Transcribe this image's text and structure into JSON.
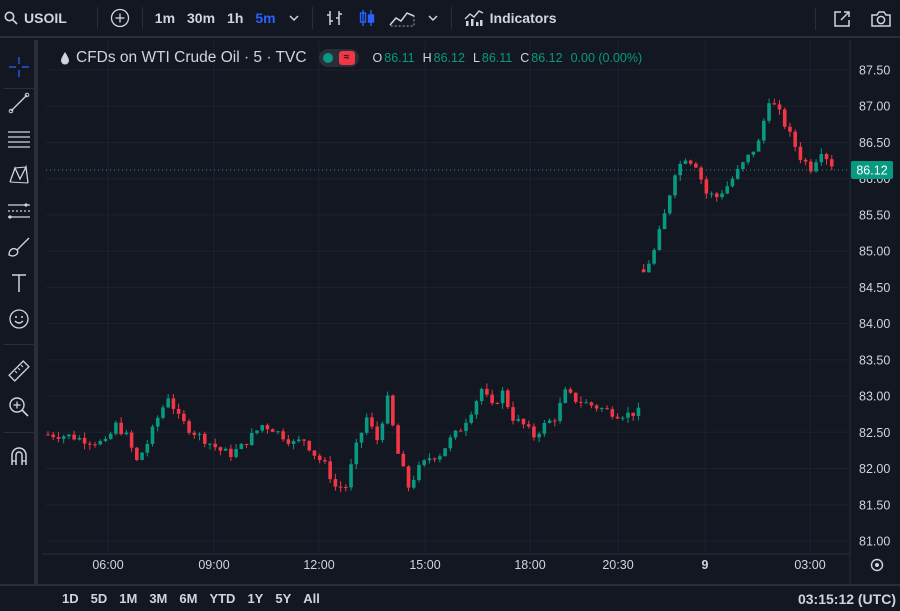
{
  "toolbar": {
    "symbol": "USOIL",
    "intervals": [
      "1m",
      "30m",
      "1h",
      "5m"
    ],
    "active_interval": "5m",
    "indicators_label": "Indicators"
  },
  "legend": {
    "title": "CFDs on WTI Crude Oil · 5 · TVC",
    "o_label": "O",
    "o_value": "86.11",
    "h_label": "H",
    "h_value": "86.12",
    "l_label": "L",
    "l_value": "86.11",
    "c_label": "C",
    "c_value": "86.12",
    "change": "0.00 (0.00%)"
  },
  "price_axis": {
    "ticks": [
      "87.50",
      "87.00",
      "86.50",
      "86.00",
      "85.50",
      "85.00",
      "84.50",
      "84.00",
      "83.50",
      "83.00",
      "82.50",
      "82.00",
      "81.50",
      "81.00"
    ],
    "last_price": "86.12"
  },
  "time_axis": {
    "ticks": [
      "06:00",
      "09:00",
      "12:00",
      "15:00",
      "18:00",
      "20:30",
      "9",
      "03:00"
    ]
  },
  "bottom": {
    "ranges": [
      "1D",
      "5D",
      "1M",
      "3M",
      "6M",
      "YTD",
      "1Y",
      "5Y",
      "All"
    ],
    "clock": "03:15:12 (UTC)"
  },
  "colors": {
    "background": "#131722",
    "grid": "#1e222d",
    "up": "#089981",
    "down": "#f23645",
    "text": "#d1d4dc",
    "active": "#2962ff"
  },
  "chart_data": {
    "type": "candlestick",
    "ylim": [
      81.0,
      87.5
    ],
    "x_ticks": [
      "06:00",
      "09:00",
      "12:00",
      "15:00",
      "18:00",
      "20:30",
      "9",
      "03:00"
    ],
    "close_path": [
      [
        0,
        82.47
      ],
      [
        20,
        82.45
      ],
      [
        40,
        82.38
      ],
      [
        55,
        82.35
      ],
      [
        65,
        82.6
      ],
      [
        75,
        82.45
      ],
      [
        85,
        82.1
      ],
      [
        95,
        82.35
      ],
      [
        105,
        82.7
      ],
      [
        115,
        83.0
      ],
      [
        125,
        82.7
      ],
      [
        135,
        82.55
      ],
      [
        145,
        82.45
      ],
      [
        155,
        82.35
      ],
      [
        165,
        82.25
      ],
      [
        175,
        82.2
      ],
      [
        185,
        82.3
      ],
      [
        195,
        82.45
      ],
      [
        205,
        82.6
      ],
      [
        215,
        82.55
      ],
      [
        225,
        82.45
      ],
      [
        235,
        82.35
      ],
      [
        245,
        82.4
      ],
      [
        255,
        82.2
      ],
      [
        265,
        82.05
      ],
      [
        275,
        81.75
      ],
      [
        285,
        81.75
      ],
      [
        295,
        82.3
      ],
      [
        305,
        82.7
      ],
      [
        315,
        82.4
      ],
      [
        325,
        82.95
      ],
      [
        335,
        82.2
      ],
      [
        345,
        81.75
      ],
      [
        355,
        82.0
      ],
      [
        365,
        82.15
      ],
      [
        375,
        82.2
      ],
      [
        385,
        82.4
      ],
      [
        395,
        82.55
      ],
      [
        405,
        82.8
      ],
      [
        415,
        83.1
      ],
      [
        425,
        82.85
      ],
      [
        435,
        83.05
      ],
      [
        445,
        82.7
      ],
      [
        455,
        82.6
      ],
      [
        465,
        82.45
      ],
      [
        475,
        82.6
      ],
      [
        485,
        82.7
      ],
      [
        495,
        83.05
      ],
      [
        505,
        82.95
      ],
      [
        515,
        82.9
      ],
      [
        525,
        82.85
      ],
      [
        535,
        82.8
      ],
      [
        545,
        82.75
      ],
      [
        555,
        82.75
      ],
      [
        565,
        82.78
      ],
      [
        570,
        84.7
      ],
      [
        580,
        85.0
      ],
      [
        590,
        85.5
      ],
      [
        600,
        86.1
      ],
      [
        610,
        86.3
      ],
      [
        620,
        86.2
      ],
      [
        630,
        85.8
      ],
      [
        640,
        85.75
      ],
      [
        650,
        85.9
      ],
      [
        660,
        86.1
      ],
      [
        670,
        86.3
      ],
      [
        680,
        86.5
      ],
      [
        690,
        87.1
      ],
      [
        700,
        86.9
      ],
      [
        710,
        86.6
      ],
      [
        720,
        86.3
      ],
      [
        730,
        86.15
      ],
      [
        740,
        86.4
      ],
      [
        750,
        86.2
      ],
      [
        760,
        86.12
      ]
    ],
    "last_price": 86.12
  }
}
